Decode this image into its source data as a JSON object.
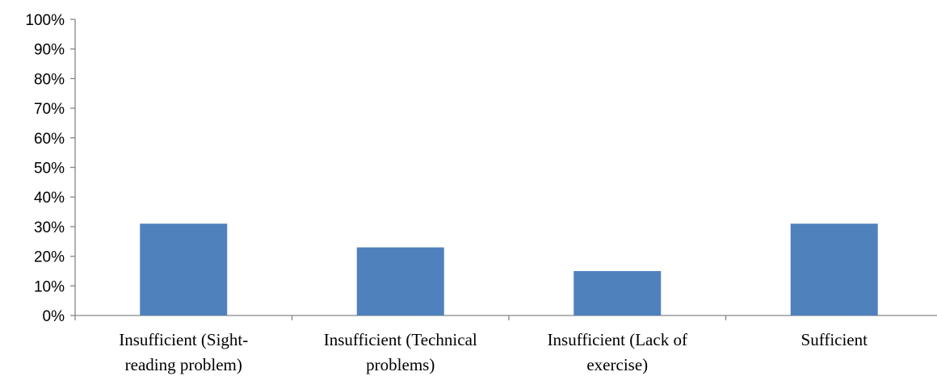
{
  "chart_data": {
    "type": "bar",
    "categories": [
      [
        "Insufficient (Sight-",
        "reading problem)"
      ],
      [
        "Insufficient (Technical",
        "problems)"
      ],
      [
        "Insufficient (Lack of",
        "exercise)"
      ],
      [
        "Sufficient"
      ]
    ],
    "values": [
      31,
      23,
      15,
      31
    ],
    "ylim": [
      0,
      100
    ],
    "yticks": [
      "0%",
      "10%",
      "20%",
      "30%",
      "40%",
      "50%",
      "60%",
      "70%",
      "80%",
      "90%",
      "100%"
    ],
    "grid": false,
    "legend": "none",
    "bar_color": "#4f81bd",
    "axis_color": "#868686"
  }
}
